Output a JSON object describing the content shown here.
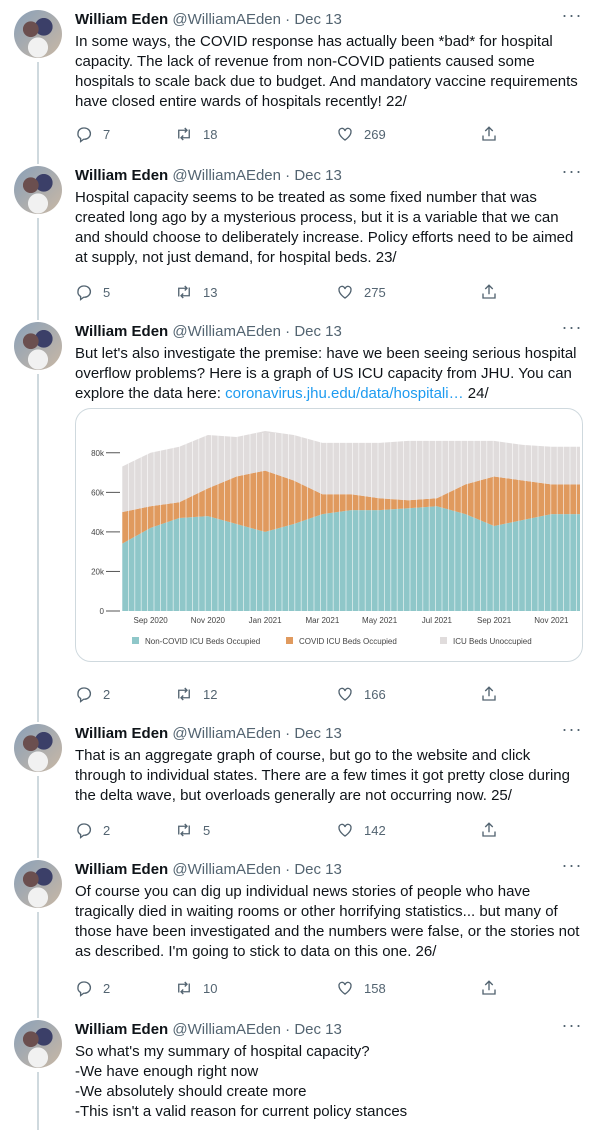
{
  "author": {
    "name": "William Eden",
    "handle": "@WilliamAEden",
    "date": "Dec 13",
    "separator": "·"
  },
  "tweets": [
    {
      "text": "In some ways, the COVID response has actually been *bad* for hospital capacity. The lack of revenue from non-COVID patients caused some hospitals to scale back due to budget. And mandatory vaccine requirements have closed entire wards of hospitals recently! 22/",
      "replies": "7",
      "retweets": "18",
      "likes": "269"
    },
    {
      "text": "Hospital capacity seems to be treated as some fixed number that was created long ago by a mysterious process, but it is a variable that we can and should choose to deliberately increase. Policy efforts need to be aimed at supply, not just demand, for hospital beds. 23/",
      "replies": "5",
      "retweets": "13",
      "likes": "275"
    },
    {
      "text": "But let's also investigate the premise: have we been seeing serious hospital overflow problems? Here is a graph of US ICU capacity from JHU. You can explore the data here: ",
      "link": "coronavirus.jhu.edu/data/hospitali…",
      "text_after": " 24/",
      "replies": "2",
      "retweets": "12",
      "likes": "166"
    },
    {
      "text": "That is an aggregate graph of course, but go to the website and click through to individual states. There are a few times it got pretty close during the delta wave, but overloads generally are not occurring now. 25/",
      "replies": "2",
      "retweets": "5",
      "likes": "142"
    },
    {
      "text": "Of course you can dig up individual news stories of people who have tragically died in waiting rooms or other horrifying statistics... but many of those have been investigated and the numbers were false, or the stories not as described. I'm going to stick to data on this one. 26/",
      "replies": "2",
      "retweets": "10",
      "likes": "158"
    },
    {
      "text": "So what's my summary of hospital capacity?\n-We have enough right now\n-We absolutely should create more\n-This isn't a valid reason for current policy stances"
    }
  ],
  "chart_data": {
    "type": "area",
    "stacked": true,
    "x": [
      "Aug 2020",
      "Sep 2020",
      "Oct 2020",
      "Nov 2020",
      "Dec 2020",
      "Jan 2021",
      "Feb 2021",
      "Mar 2021",
      "Apr 2021",
      "May 2021",
      "Jun 2021",
      "Jul 2021",
      "Aug 2021",
      "Sep 2021",
      "Oct 2021",
      "Nov 2021",
      "Dec 2021"
    ],
    "xticks": [
      "Sep 2020",
      "Nov 2020",
      "Jan 2021",
      "Mar 2021",
      "May 2021",
      "Jul 2021",
      "Sep 2021",
      "Nov 2021"
    ],
    "yticks": [
      "0",
      "20k",
      "40k",
      "60k",
      "80k"
    ],
    "ylim": [
      0,
      90000
    ],
    "series": [
      {
        "name": "Non-COVID ICU Beds Occupied",
        "color": "#8fc7c9",
        "values": [
          34000,
          42000,
          47000,
          48000,
          44000,
          40000,
          44000,
          49000,
          51000,
          51000,
          52000,
          53000,
          49000,
          43000,
          46000,
          49000,
          49000
        ]
      },
      {
        "name": "COVID ICU Beds Occupied",
        "color": "#e09a5e",
        "values": [
          16000,
          11000,
          8000,
          14000,
          24000,
          31000,
          22000,
          10000,
          8000,
          6000,
          4000,
          4000,
          15000,
          25000,
          20000,
          15000,
          15000
        ]
      },
      {
        "name": "ICU Beds Unoccupied",
        "color": "#e0dcdc",
        "values": [
          23000,
          27000,
          28000,
          27000,
          20000,
          20000,
          23000,
          26000,
          26000,
          28000,
          30000,
          29000,
          22000,
          18000,
          18000,
          19000,
          19000
        ]
      }
    ]
  }
}
